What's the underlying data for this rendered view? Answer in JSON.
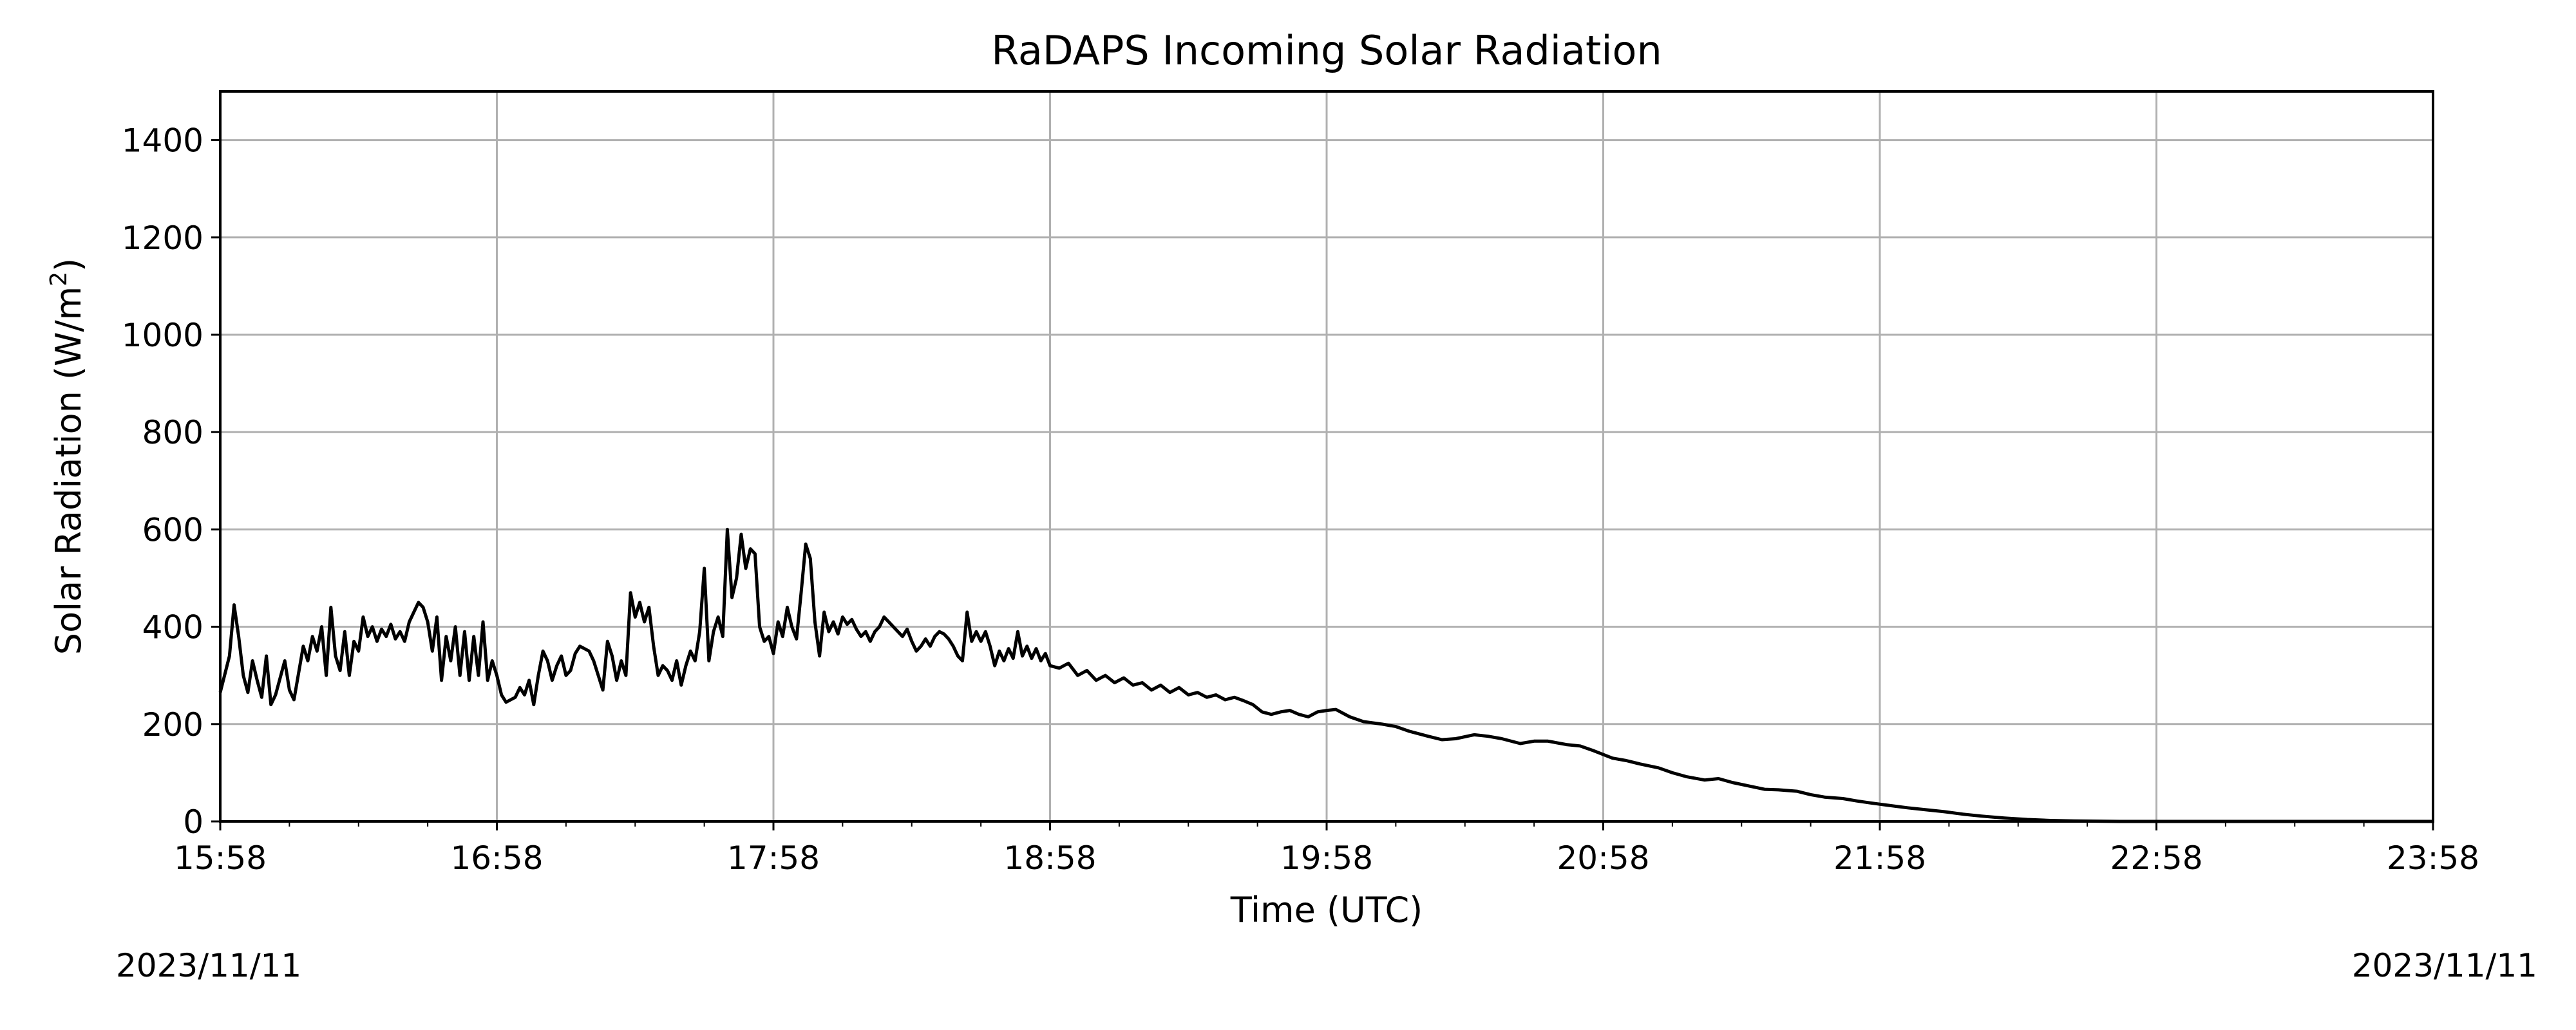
{
  "chart_data": {
    "type": "line",
    "title": "RaDAPS Incoming Solar Radiation",
    "xlabel": "Time (UTC)",
    "ylabel": "Solar Radiation (W/m²)",
    "x_ticks": [
      "15:58",
      "16:58",
      "17:58",
      "18:58",
      "19:58",
      "20:58",
      "21:58",
      "22:58",
      "23:58"
    ],
    "x_range": [
      "15:58",
      "23:58"
    ],
    "y_ticks": [
      0,
      200,
      400,
      600,
      800,
      1000,
      1200,
      1400
    ],
    "ylim": [
      0,
      1500
    ],
    "grid": true,
    "line_color": "#000000",
    "series": [
      {
        "points": [
          [
            "15:58",
            265
          ],
          [
            "16:00",
            340
          ],
          [
            "16:01",
            445
          ],
          [
            "16:02",
            380
          ],
          [
            "16:03",
            300
          ],
          [
            "16:04",
            265
          ],
          [
            "16:05",
            330
          ],
          [
            "16:06",
            290
          ],
          [
            "16:07",
            255
          ],
          [
            "16:08",
            340
          ],
          [
            "16:09",
            240
          ],
          [
            "16:10",
            260
          ],
          [
            "16:12",
            330
          ],
          [
            "16:13",
            270
          ],
          [
            "16:14",
            250
          ],
          [
            "16:16",
            360
          ],
          [
            "16:17",
            330
          ],
          [
            "16:18",
            380
          ],
          [
            "16:19",
            350
          ],
          [
            "16:20",
            400
          ],
          [
            "16:21",
            300
          ],
          [
            "16:22",
            440
          ],
          [
            "16:23",
            340
          ],
          [
            "16:24",
            310
          ],
          [
            "16:25",
            390
          ],
          [
            "16:26",
            300
          ],
          [
            "16:27",
            370
          ],
          [
            "16:28",
            350
          ],
          [
            "16:29",
            420
          ],
          [
            "16:30",
            380
          ],
          [
            "16:31",
            400
          ],
          [
            "16:32",
            370
          ],
          [
            "16:33",
            395
          ],
          [
            "16:34",
            380
          ],
          [
            "16:35",
            405
          ],
          [
            "16:36",
            375
          ],
          [
            "16:37",
            390
          ],
          [
            "16:38",
            370
          ],
          [
            "16:39",
            410
          ],
          [
            "16:40",
            430
          ],
          [
            "16:41",
            450
          ],
          [
            "16:42",
            440
          ],
          [
            "16:43",
            410
          ],
          [
            "16:44",
            350
          ],
          [
            "16:45",
            420
          ],
          [
            "16:46",
            290
          ],
          [
            "16:47",
            380
          ],
          [
            "16:48",
            330
          ],
          [
            "16:49",
            400
          ],
          [
            "16:50",
            300
          ],
          [
            "16:51",
            390
          ],
          [
            "16:52",
            290
          ],
          [
            "16:53",
            380
          ],
          [
            "16:54",
            300
          ],
          [
            "16:55",
            410
          ],
          [
            "16:56",
            290
          ],
          [
            "16:57",
            330
          ],
          [
            "16:58",
            300
          ],
          [
            "16:59",
            260
          ],
          [
            "17:00",
            245
          ],
          [
            "17:02",
            255
          ],
          [
            "17:03",
            275
          ],
          [
            "17:04",
            260
          ],
          [
            "17:05",
            290
          ],
          [
            "17:06",
            240
          ],
          [
            "17:07",
            300
          ],
          [
            "17:08",
            350
          ],
          [
            "17:09",
            330
          ],
          [
            "17:10",
            290
          ],
          [
            "17:11",
            320
          ],
          [
            "17:12",
            340
          ],
          [
            "17:13",
            300
          ],
          [
            "17:14",
            310
          ],
          [
            "17:15",
            345
          ],
          [
            "17:16",
            360
          ],
          [
            "17:17",
            355
          ],
          [
            "17:18",
            350
          ],
          [
            "17:19",
            330
          ],
          [
            "17:20",
            300
          ],
          [
            "17:21",
            270
          ],
          [
            "17:22",
            370
          ],
          [
            "17:23",
            340
          ],
          [
            "17:24",
            290
          ],
          [
            "17:25",
            330
          ],
          [
            "17:26",
            300
          ],
          [
            "17:27",
            470
          ],
          [
            "17:28",
            420
          ],
          [
            "17:29",
            450
          ],
          [
            "17:30",
            410
          ],
          [
            "17:31",
            440
          ],
          [
            "17:32",
            360
          ],
          [
            "17:33",
            300
          ],
          [
            "17:34",
            320
          ],
          [
            "17:35",
            310
          ],
          [
            "17:36",
            290
          ],
          [
            "17:37",
            330
          ],
          [
            "17:38",
            280
          ],
          [
            "17:39",
            320
          ],
          [
            "17:40",
            350
          ],
          [
            "17:41",
            330
          ],
          [
            "17:42",
            390
          ],
          [
            "17:43",
            520
          ],
          [
            "17:44",
            330
          ],
          [
            "17:45",
            390
          ],
          [
            "17:46",
            420
          ],
          [
            "17:47",
            380
          ],
          [
            "17:48",
            600
          ],
          [
            "17:49",
            460
          ],
          [
            "17:50",
            500
          ],
          [
            "17:51",
            590
          ],
          [
            "17:52",
            520
          ],
          [
            "17:53",
            560
          ],
          [
            "17:54",
            550
          ],
          [
            "17:55",
            400
          ],
          [
            "17:56",
            370
          ],
          [
            "17:57",
            380
          ],
          [
            "17:58",
            345
          ],
          [
            "17:59",
            410
          ],
          [
            "18:00",
            380
          ],
          [
            "18:01",
            440
          ],
          [
            "18:02",
            400
          ],
          [
            "18:03",
            375
          ],
          [
            "18:04",
            470
          ],
          [
            "18:05",
            570
          ],
          [
            "18:06",
            540
          ],
          [
            "18:07",
            410
          ],
          [
            "18:08",
            340
          ],
          [
            "18:09",
            430
          ],
          [
            "18:10",
            390
          ],
          [
            "18:11",
            410
          ],
          [
            "18:12",
            385
          ],
          [
            "18:13",
            420
          ],
          [
            "18:14",
            405
          ],
          [
            "18:15",
            415
          ],
          [
            "18:16",
            395
          ],
          [
            "18:17",
            380
          ],
          [
            "18:18",
            390
          ],
          [
            "18:19",
            370
          ],
          [
            "18:20",
            390
          ],
          [
            "18:21",
            400
          ],
          [
            "18:22",
            420
          ],
          [
            "18:23",
            410
          ],
          [
            "18:24",
            400
          ],
          [
            "18:25",
            390
          ],
          [
            "18:26",
            380
          ],
          [
            "18:27",
            395
          ],
          [
            "18:28",
            370
          ],
          [
            "18:29",
            350
          ],
          [
            "18:30",
            360
          ],
          [
            "18:31",
            375
          ],
          [
            "18:32",
            360
          ],
          [
            "18:33",
            380
          ],
          [
            "18:34",
            390
          ],
          [
            "18:35",
            385
          ],
          [
            "18:36",
            375
          ],
          [
            "18:37",
            360
          ],
          [
            "18:38",
            340
          ],
          [
            "18:39",
            330
          ],
          [
            "18:40",
            430
          ],
          [
            "18:41",
            370
          ],
          [
            "18:42",
            390
          ],
          [
            "18:43",
            370
          ],
          [
            "18:44",
            390
          ],
          [
            "18:45",
            360
          ],
          [
            "18:46",
            320
          ],
          [
            "18:47",
            350
          ],
          [
            "18:48",
            330
          ],
          [
            "18:49",
            355
          ],
          [
            "18:50",
            335
          ],
          [
            "18:51",
            390
          ],
          [
            "18:52",
            340
          ],
          [
            "18:53",
            360
          ],
          [
            "18:54",
            335
          ],
          [
            "18:55",
            355
          ],
          [
            "18:56",
            330
          ],
          [
            "18:57",
            345
          ],
          [
            "18:58",
            320
          ],
          [
            "19:00",
            315
          ],
          [
            "19:02",
            325
          ],
          [
            "19:04",
            300
          ],
          [
            "19:06",
            310
          ],
          [
            "19:08",
            290
          ],
          [
            "19:10",
            300
          ],
          [
            "19:12",
            285
          ],
          [
            "19:14",
            295
          ],
          [
            "19:16",
            280
          ],
          [
            "19:18",
            285
          ],
          [
            "19:20",
            270
          ],
          [
            "19:22",
            280
          ],
          [
            "19:24",
            265
          ],
          [
            "19:26",
            275
          ],
          [
            "19:28",
            260
          ],
          [
            "19:30",
            265
          ],
          [
            "19:32",
            255
          ],
          [
            "19:34",
            260
          ],
          [
            "19:36",
            250
          ],
          [
            "19:38",
            255
          ],
          [
            "19:40",
            248
          ],
          [
            "19:42",
            240
          ],
          [
            "19:44",
            225
          ],
          [
            "19:46",
            220
          ],
          [
            "19:48",
            225
          ],
          [
            "19:50",
            228
          ],
          [
            "19:52",
            220
          ],
          [
            "19:54",
            215
          ],
          [
            "19:56",
            225
          ],
          [
            "19:58",
            228
          ],
          [
            "20:00",
            230
          ],
          [
            "20:03",
            215
          ],
          [
            "20:06",
            205
          ],
          [
            "20:10",
            200
          ],
          [
            "20:13",
            195
          ],
          [
            "20:16",
            185
          ],
          [
            "20:20",
            175
          ],
          [
            "20:23",
            168
          ],
          [
            "20:26",
            170
          ],
          [
            "20:30",
            178
          ],
          [
            "20:33",
            175
          ],
          [
            "20:36",
            170
          ],
          [
            "20:40",
            160
          ],
          [
            "20:43",
            165
          ],
          [
            "20:46",
            165
          ],
          [
            "20:50",
            158
          ],
          [
            "20:53",
            155
          ],
          [
            "20:56",
            145
          ],
          [
            "21:00",
            130
          ],
          [
            "21:03",
            125
          ],
          [
            "21:06",
            118
          ],
          [
            "21:10",
            110
          ],
          [
            "21:13",
            100
          ],
          [
            "21:16",
            92
          ],
          [
            "21:20",
            85
          ],
          [
            "21:23",
            88
          ],
          [
            "21:26",
            80
          ],
          [
            "21:30",
            72
          ],
          [
            "21:33",
            66
          ],
          [
            "21:36",
            65
          ],
          [
            "21:40",
            62
          ],
          [
            "21:43",
            55
          ],
          [
            "21:46",
            50
          ],
          [
            "21:50",
            47
          ],
          [
            "21:53",
            42
          ],
          [
            "21:56",
            38
          ],
          [
            "22:00",
            33
          ],
          [
            "22:04",
            28
          ],
          [
            "22:08",
            24
          ],
          [
            "22:12",
            20
          ],
          [
            "22:16",
            15
          ],
          [
            "22:20",
            11
          ],
          [
            "22:25",
            7
          ],
          [
            "22:30",
            4
          ],
          [
            "22:35",
            2
          ],
          [
            "22:40",
            1
          ],
          [
            "22:50",
            0
          ],
          [
            "23:58",
            0
          ]
        ]
      }
    ],
    "date_left": "2023/11/11",
    "date_right": "2023/11/11"
  }
}
